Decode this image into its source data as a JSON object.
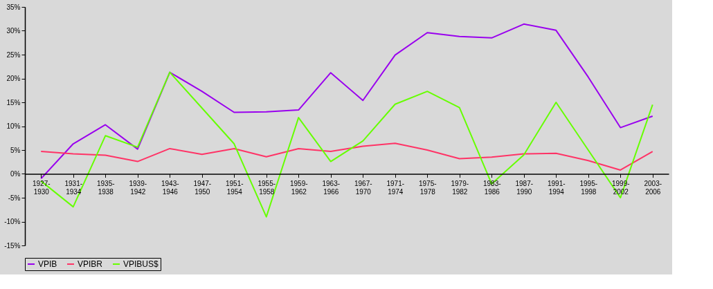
{
  "chart_data": {
    "type": "line",
    "categories": [
      "1927-1930",
      "1931-1934",
      "1935-1938",
      "1939-1942",
      "1943-1946",
      "1947-1950",
      "1951-1954",
      "1955-1958",
      "1959-1962",
      "1963-1966",
      "1967-1970",
      "1971-1974",
      "1975-1978",
      "1979-1982",
      "1983-1986",
      "1987-1990",
      "1991-1994",
      "1995-1998",
      "1999-2002",
      "2003-2006"
    ],
    "series": [
      {
        "name": "VPIB",
        "color": "#9900ee",
        "values": [
          -1.0,
          6.3,
          10.3,
          5.2,
          21.3,
          17.3,
          12.9,
          13.0,
          13.4,
          21.2,
          15.4,
          24.9,
          29.6,
          28.8,
          28.5,
          31.4,
          30.1,
          20.3,
          9.7,
          12.1
        ]
      },
      {
        "name": "VPIBR",
        "color": "#ff3366",
        "values": [
          4.7,
          4.2,
          3.9,
          2.6,
          5.3,
          4.1,
          5.3,
          3.6,
          5.3,
          4.7,
          5.8,
          6.4,
          5.0,
          3.2,
          3.5,
          4.2,
          4.3,
          2.8,
          0.8,
          4.7
        ]
      },
      {
        "name": "VPIBUS$",
        "color": "#66ff00",
        "values": [
          -1.5,
          -6.9,
          8.0,
          5.6,
          21.3,
          13.8,
          6.3,
          -9.0,
          11.8,
          2.6,
          6.9,
          14.6,
          17.3,
          13.9,
          -2.1,
          4.0,
          15.0,
          5.0,
          -5.0,
          14.5
        ]
      }
    ],
    "ylim": [
      -15,
      35
    ],
    "yticks": [
      {
        "value": -15,
        "label": "-15%"
      },
      {
        "value": -10,
        "label": "-10%"
      },
      {
        "value": -5,
        "label": "-5%"
      },
      {
        "value": 0,
        "label": "0%"
      },
      {
        "value": 5,
        "label": "5%"
      },
      {
        "value": 10,
        "label": "10%"
      },
      {
        "value": 15,
        "label": "15%"
      },
      {
        "value": 20,
        "label": "20%"
      },
      {
        "value": 25,
        "label": "25%"
      },
      {
        "value": 30,
        "label": "30%"
      },
      {
        "value": 35,
        "label": "35%"
      }
    ],
    "legend": "bottom",
    "marker": "none",
    "line_style": "solid"
  }
}
